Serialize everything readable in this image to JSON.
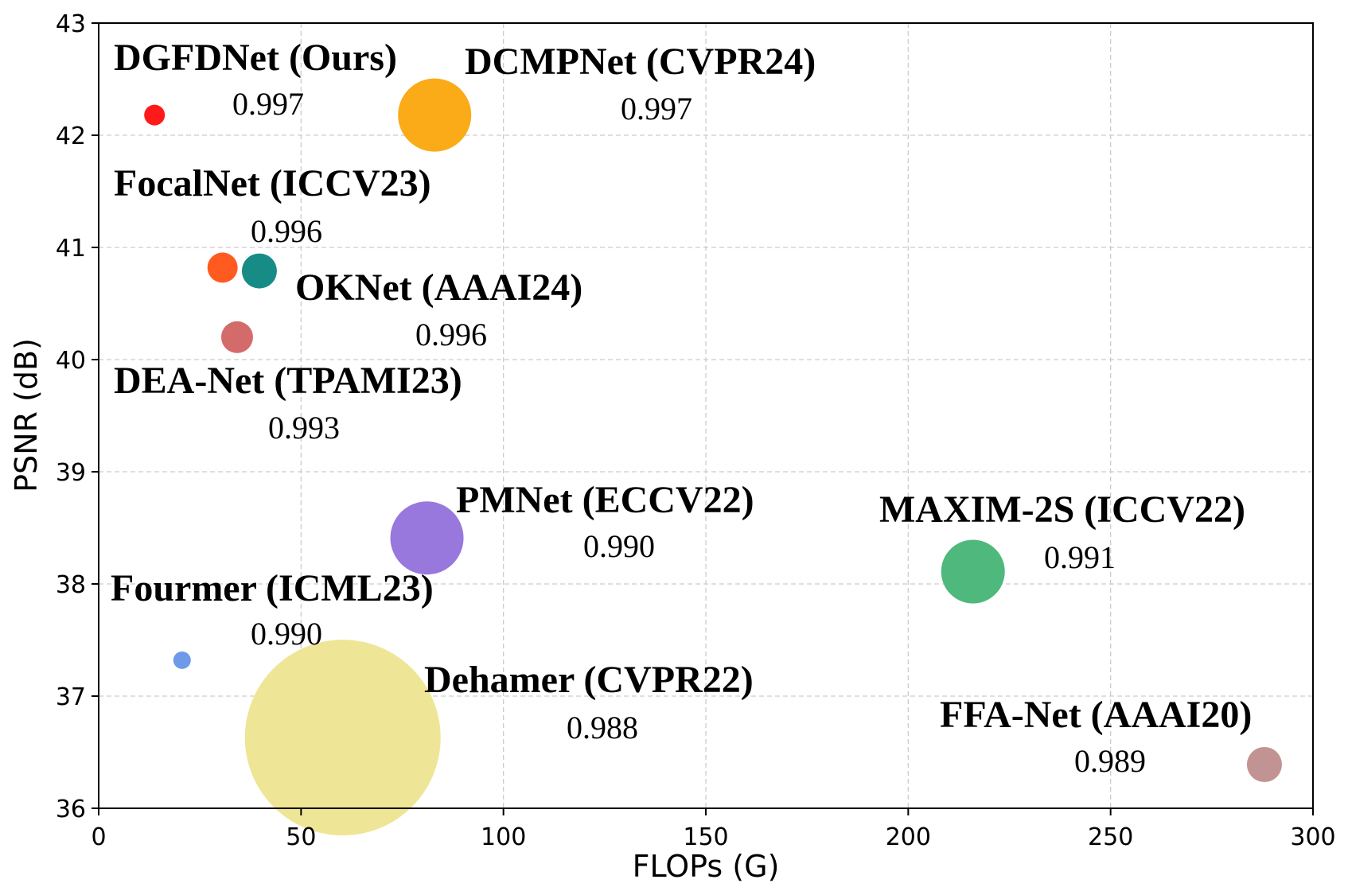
{
  "chart_data": {
    "type": "scatter",
    "xlabel": "FLOPs (G)",
    "ylabel": "PSNR (dB)",
    "xlim": [
      0,
      300
    ],
    "ylim": [
      36,
      43
    ],
    "xticks": [
      "0",
      "50",
      "100",
      "150",
      "200",
      "250",
      "300"
    ],
    "yticks": [
      "36",
      "37",
      "38",
      "39",
      "40",
      "41",
      "42",
      "43"
    ],
    "grid": true,
    "points": [
      {
        "name": "DGFDNet (Ours)",
        "score": "0.997",
        "x": 13.8,
        "y": 42.18,
        "size": 13,
        "color": "#ff1a1a"
      },
      {
        "name": "DCMPNet (CVPR24)",
        "score": "0.997",
        "x": 83.0,
        "y": 42.18,
        "size": 46,
        "color": "#fbab18"
      },
      {
        "name": "FocalNet (ICCV23)",
        "score": "0.996",
        "x": 30.6,
        "y": 40.82,
        "size": 19,
        "color": "#ff5a1f"
      },
      {
        "name": "OKNet (AAAI24)",
        "score": "0.996",
        "x": 39.7,
        "y": 40.79,
        "size": 22,
        "color": "#178c87"
      },
      {
        "name": "DEA-Net (TPAMI23)",
        "score": "0.993",
        "x": 34.2,
        "y": 40.2,
        "size": 20,
        "color": "#d46b6b"
      },
      {
        "name": "PMNet (ECCV22)",
        "score": "0.990",
        "x": 81.1,
        "y": 38.41,
        "size": 46,
        "color": "#9878dc"
      },
      {
        "name": "MAXIM-2S (ICCV22)",
        "score": "0.991",
        "x": 216.0,
        "y": 38.11,
        "size": 40,
        "color": "#4fb87c"
      },
      {
        "name": "Fourmer (ICML23)",
        "score": "0.990",
        "x": 20.6,
        "y": 37.32,
        "size": 11,
        "color": "#6f9ae8"
      },
      {
        "name": "Dehamer (CVPR22)",
        "score": "0.988",
        "x": 60.3,
        "y": 36.63,
        "size": 123,
        "color": "#eee696"
      },
      {
        "name": "FFA-Net (AAAI20)",
        "score": "0.989",
        "x": 288.0,
        "y": 36.39,
        "size": 22,
        "color": "#c29393"
      }
    ],
    "labels": [
      {
        "name": "DGFDNet (Ours)",
        "score": "0.997",
        "nx": 0.0,
        "ny": 43.0,
        "sx": 0,
        "sy": 42.6
      },
      {
        "name": "DCMPNet (CVPR24)",
        "score": "0.997",
        "nx": 0.0,
        "ny": 0.0,
        "sx": 0,
        "sy": 0
      }
    ]
  }
}
